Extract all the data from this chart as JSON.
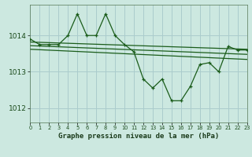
{
  "title": "Graphe pression niveau de la mer (hPa)",
  "background_color": "#cce8e0",
  "grid_color": "#aacccc",
  "line_color": "#1a5c1a",
  "xlim": [
    0,
    23
  ],
  "ylim": [
    1011.6,
    1014.85
  ],
  "yticks": [
    1012,
    1013,
    1014
  ],
  "xticks": [
    0,
    1,
    2,
    3,
    4,
    5,
    6,
    7,
    8,
    9,
    10,
    11,
    12,
    13,
    14,
    15,
    16,
    17,
    18,
    19,
    20,
    21,
    22,
    23
  ],
  "series1": [
    1013.9,
    1013.75,
    1013.75,
    1013.75,
    1014.0,
    1014.6,
    1014.0,
    1014.0,
    1014.6,
    1014.0,
    1013.75,
    1013.55,
    1012.8,
    1012.55,
    1012.8,
    1012.2,
    1012.2,
    1012.6,
    1013.2,
    1013.25,
    1013.0,
    1013.7,
    1013.6,
    1013.6
  ],
  "series2_x": [
    0,
    23
  ],
  "series2_y": [
    1013.82,
    1013.62
  ],
  "series3_x": [
    0,
    23
  ],
  "series3_y": [
    1013.72,
    1013.48
  ],
  "series4_x": [
    0,
    23
  ],
  "series4_y": [
    1013.62,
    1013.34
  ]
}
